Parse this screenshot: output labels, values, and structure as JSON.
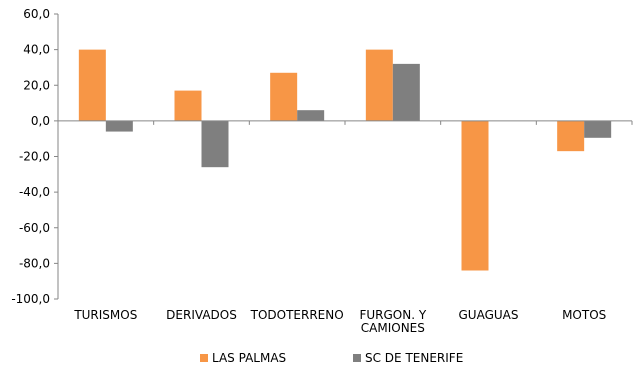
{
  "chart_data": {
    "type": "bar",
    "categories": [
      [
        "TURISMOS"
      ],
      [
        "DERIVADOS"
      ],
      [
        "TODOTERRENO"
      ],
      [
        "FURGON. Y",
        "CAMIONES"
      ],
      [
        "GUAGUAS"
      ],
      [
        "MOTOS"
      ]
    ],
    "series": [
      {
        "name": "LAS PALMAS",
        "color": "#f79646",
        "values": [
          40,
          17,
          27,
          40,
          -84,
          -17
        ]
      },
      {
        "name": "SC DE TENERIFE",
        "color": "#7f7f7f",
        "values": [
          -6,
          -26,
          6,
          32,
          0,
          -9.5
        ]
      }
    ],
    "ylim": [
      -100,
      60
    ],
    "yticks": [
      "60,0",
      "40,0",
      "20,0",
      "0,0",
      "-20,0",
      "-40,0",
      "-60,0",
      "-80,0",
      "-100,0"
    ],
    "ytick_values": [
      60,
      40,
      20,
      0,
      -20,
      -40,
      -60,
      -80,
      -100
    ],
    "grid": false,
    "legend_position": "bottom"
  }
}
